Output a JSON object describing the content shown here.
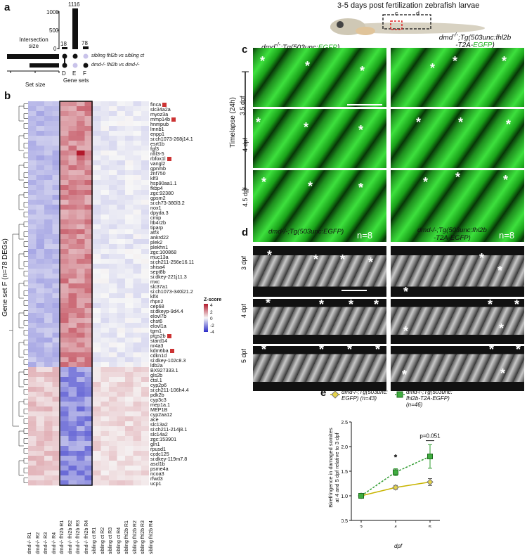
{
  "panels": {
    "a": "a",
    "b": "b",
    "c": "c",
    "d": "d",
    "e": "e"
  },
  "upset": {
    "ylabel": "Intersection\nsize",
    "yticks": [
      "1000",
      "500",
      "0"
    ],
    "xlabel_sets": "Set size",
    "xticks_sets": [
      "1000",
      "500",
      "0"
    ],
    "bar_values": [
      18,
      1116,
      78
    ],
    "set_names": [
      "sibling fhl2b vs sibling ct",
      "dmd-/- fhl2b vs dmd-/-"
    ],
    "gene_sets_label": "Gene sets",
    "columns": [
      "D",
      "E",
      "F"
    ]
  },
  "heatmap": {
    "ylabel": "Gene set F (n=78 DEGs)",
    "zscore_title": "Z-score",
    "zscore_ticks": [
      "4",
      "2",
      "0",
      "-2",
      "-4"
    ],
    "genes": [
      "finca",
      "slc34a2a",
      "myoz3a",
      "mmp14b",
      "hnmpub",
      "lmnb1",
      "enpp1",
      "si:ch1073-268j14.1",
      "esrt1b",
      "fgf3",
      "nfil3-5",
      "rbfox1l",
      "vangl2",
      "gpnmb",
      "znf750",
      "klf3",
      "hsp90aa1.1",
      "fkbp4",
      "zgc:92380",
      "gpsm2",
      "si:ch73-380l3.2",
      "nox1",
      "dpyda.3",
      "cmip",
      "ltb4r2b",
      "tiparp",
      "atf3",
      "ankrd22",
      "plek2",
      "plekhn1",
      "zgc:100868",
      "muc13a",
      "si:ch211-256e16.11",
      "shisa4",
      "sept8b",
      "si:dkey-221j11.3",
      "mxc",
      "slc37a1",
      "si:ch1073-340i21.2",
      "klf4",
      "rhpn2",
      "cep68",
      "si:dkeyp-9d4.4",
      "elovl7b",
      "chst6",
      "elovl1a",
      "tgm1",
      "ptgs2b",
      "stard14",
      "nr4a3",
      "kdm6ba",
      "cdkn1d",
      "si:dkey-102c8.3",
      "ldb2a",
      "BX927333.1",
      "gls2b",
      "ctsl.1",
      "cyp2p6",
      "si:ch211-106h4.4",
      "pdk2b",
      "cyp3c3",
      "mep1a.1",
      "MEP1B",
      "cyp2aa12",
      "ace",
      "slc13a2",
      "si:ch211-214j8.1",
      "slc14a2",
      "zgc:153901",
      "gln1",
      "rpusd1",
      "ccdc125",
      "si:dkey-119m7.8",
      "ascl1b",
      "psme4a",
      "ncoa3",
      "rfwd3",
      "ucp1"
    ],
    "marked_genes": [
      "finca",
      "mmp14b",
      "rbfox1l",
      "ptgs2b",
      "kdm6ba"
    ],
    "columns": [
      "dmd-/- R1",
      "dmd-/- R2",
      "dmd-/- R3",
      "dmd-/- R4",
      "dmd-/- fhl2b R1",
      "dmd-/- fhl2b R2",
      "dmd-/- fhl2b R3",
      "dmd-/- fhl2b R4",
      "sibling ct R1",
      "sibling ct R2",
      "sibling ct R3",
      "sibling ct R4",
      "sibling fhl2b R1",
      "sibling fhl2b R2",
      "sibling fhl2b R3",
      "sibling fhl2b R4"
    ],
    "colors": {
      "high": "#b2182b",
      "mid": "#f7f7f7",
      "low": "#2c2cc8"
    }
  },
  "header": {
    "title": "3-5 days post fertilization zebrafish larvae",
    "box_c": "c",
    "box_d": "d"
  },
  "panel_c": {
    "col1_title_a": "dmd",
    "col1_title_b": "-/-",
    "col1_title_c": ";Tg(503unc:",
    "col1_title_d": "EGFP",
    "col1_title_e": ")",
    "col2_title_a": "dmd",
    "col2_title_b": "-/-",
    "col2_title_c": ";Tg(503unc:fhl2b",
    "col2_title_d": "-T2A-",
    "col2_title_e": "EGFP",
    "col2_title_f": ")",
    "timelapse": "Timelapse (24h)",
    "rows": [
      "3.5 dpf",
      "4 dpf",
      "4.5 dpf"
    ],
    "n1": "n=8",
    "n2": "n=8",
    "star": "*"
  },
  "panel_d": {
    "col1_title": "dmd-/-;Tg(503unc:EGFP)",
    "col2_title_1": "dmd-/-;Tg(503unc:fhl2b",
    "col2_title_2": "-T2A-EGFP)",
    "rows": [
      "3 dpf",
      "4 dpf",
      "5 dpf"
    ]
  },
  "panel_e": {
    "legend1_line1": "dmd-/-;Tg(503unc:",
    "legend1_line2": "EGFP) (n=43)",
    "legend2_line1": "dmd-/-;Tg(503unc:",
    "legend2_line2": "fhl2b-T2A-EGFP)",
    "legend2_line3": "(n=46)",
    "ylabel_1": "Birefringence in damaged somites",
    "ylabel_2": "at 4 and 5 dpf relative to 3 dpf",
    "xlabel": "dpf",
    "annot_star": "*",
    "annot_p": "p=0.051"
  },
  "chart_data": {
    "type": "line",
    "x": [
      3,
      4,
      5
    ],
    "xlabel": "dpf",
    "ylabel": "Birefringence in damaged somites at 4 and 5 dpf relative to 3 dpf",
    "ylim": [
      0.5,
      2.5
    ],
    "yticks": [
      0.5,
      1.0,
      1.5,
      2.0,
      2.5
    ],
    "series": [
      {
        "name": "dmd-/-;Tg(503unc:EGFP) (n=43)",
        "values": [
          1.0,
          1.17,
          1.28
        ],
        "err": [
          0,
          0.04,
          0.07
        ],
        "color": "#c8b400"
      },
      {
        "name": "dmd-/-;Tg(503unc:fhl2b-T2A-EGFP) (n=46)",
        "values": [
          1.0,
          1.48,
          1.8
        ],
        "err": [
          0,
          0.07,
          0.24
        ],
        "color": "#2e9b2e"
      }
    ]
  }
}
